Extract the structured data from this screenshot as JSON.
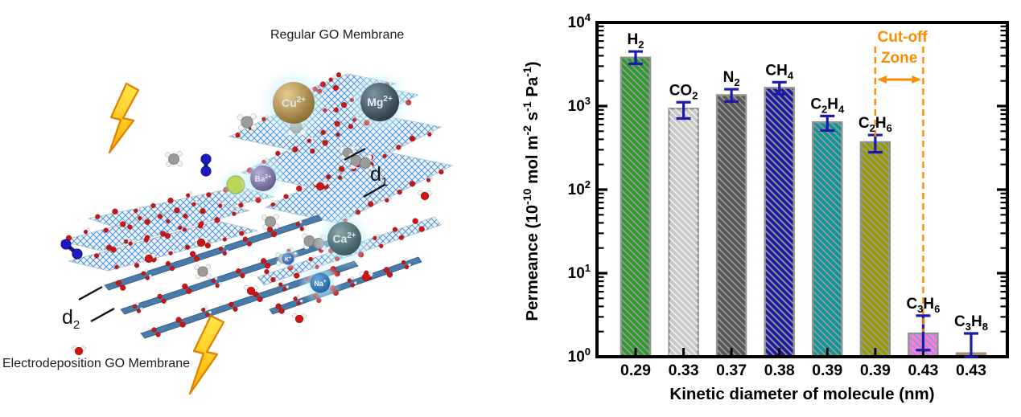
{
  "figure": {
    "background": "#ffffff"
  },
  "left_panel": {
    "regular_label": "Regular GO Membrane",
    "electro_label": "Electrodeposition GO Membrane",
    "d1": {
      "base": "d",
      "sub": "1"
    },
    "d2": {
      "base": "d",
      "sub": "2"
    },
    "ions": [
      {
        "symbol": "Cu",
        "charge": "2+"
      },
      {
        "symbol": "Mg",
        "charge": "2+"
      },
      {
        "symbol": "Ba",
        "charge": "2+"
      },
      {
        "symbol": "Ca",
        "charge": "2+"
      },
      {
        "symbol": "K",
        "charge": "+"
      },
      {
        "symbol": "Na",
        "charge": "+"
      }
    ]
  },
  "chart_data": {
    "type": "bar",
    "yscale": "log",
    "ylim": [
      1,
      10000
    ],
    "ytick_exponents": [
      0,
      1,
      2,
      3,
      4
    ],
    "xlabel": "Kinetic diameter of molecule (nm)",
    "ylabel": "Permeance (10^-10 mol m^-2 s^-1 Pa^-1)",
    "ylabel_parts": [
      {
        "t": "Permeance (10"
      },
      {
        "t": "-10",
        "sup": true
      },
      {
        "t": " mol m"
      },
      {
        "t": "-2",
        "sup": true
      },
      {
        "t": " s"
      },
      {
        "t": "-1",
        "sup": true
      },
      {
        "t": " Pa"
      },
      {
        "t": "-1",
        "sup": true
      },
      {
        "t": ")"
      }
    ],
    "categories": [
      "0.29",
      "0.33",
      "0.37",
      "0.38",
      "0.39",
      "0.39",
      "0.43",
      "0.43"
    ],
    "grid": false,
    "legend": "none",
    "axis_color": "#000000",
    "error_bar_color": "#1a1aab",
    "bar_edge_color": "#8f8f8f",
    "series": [
      {
        "name": "H2",
        "label_parts": [
          {
            "t": "H"
          },
          {
            "t": "2",
            "sub": true
          }
        ],
        "kinetic_diameter": "0.29",
        "value": 3800,
        "err_low": 3200,
        "err_high": 4500,
        "color": "#2a9b2a",
        "hatch": "gray"
      },
      {
        "name": "CO2",
        "label_parts": [
          {
            "t": "CO"
          },
          {
            "t": "2",
            "sub": true
          }
        ],
        "kinetic_diameter": "0.33",
        "value": 930,
        "err_low": 710,
        "err_high": 1110,
        "color": "#c9c9c9",
        "hatch": "light"
      },
      {
        "name": "N2",
        "label_parts": [
          {
            "t": "N"
          },
          {
            "t": "2",
            "sub": true
          }
        ],
        "kinetic_diameter": "0.37",
        "value": 1350,
        "err_low": 1130,
        "err_high": 1590,
        "color": "#565656",
        "hatch": "gray"
      },
      {
        "name": "CH4",
        "label_parts": [
          {
            "t": "CH"
          },
          {
            "t": "4",
            "sub": true
          }
        ],
        "kinetic_diameter": "0.38",
        "value": 1650,
        "err_low": 1390,
        "err_high": 1930,
        "color": "#1c1c9c",
        "hatch": "gray"
      },
      {
        "name": "C2H4",
        "label_parts": [
          {
            "t": "C"
          },
          {
            "t": "2",
            "sub": true
          },
          {
            "t": "H"
          },
          {
            "t": "4",
            "sub": true
          }
        ],
        "kinetic_diameter": "0.39",
        "value": 640,
        "err_low": 510,
        "err_high": 760,
        "color": "#0b9595",
        "hatch": "gray"
      },
      {
        "name": "C2H6",
        "label_parts": [
          {
            "t": "C"
          },
          {
            "t": "2",
            "sub": true
          },
          {
            "t": "H"
          },
          {
            "t": "6",
            "sub": true
          }
        ],
        "kinetic_diameter": "0.39",
        "value": 370,
        "err_low": 280,
        "err_high": 450,
        "color": "#9a9a00",
        "hatch": "gray"
      },
      {
        "name": "C3H6",
        "label_parts": [
          {
            "t": "C"
          },
          {
            "t": "3",
            "sub": true
          },
          {
            "t": "H"
          },
          {
            "t": "6",
            "sub": true
          }
        ],
        "kinetic_diameter": "0.43",
        "value": 1.9,
        "err_low": 1.2,
        "err_high": 3.1,
        "color": "#f07cf0",
        "hatch": "gray"
      },
      {
        "name": "C3H8",
        "label_parts": [
          {
            "t": "C"
          },
          {
            "t": "3",
            "sub": true
          },
          {
            "t": "H"
          },
          {
            "t": "8",
            "sub": true
          }
        ],
        "kinetic_diameter": "0.43",
        "value": 1.1,
        "err_low": 1.0,
        "err_high": 1.9,
        "color": "#f08000",
        "hatch": "gray"
      }
    ],
    "annotation": {
      "line1": "Cut-off",
      "line2": "Zone",
      "color": "#ff8c00",
      "from_series": "C2H6",
      "to_series": "C3H6"
    }
  }
}
